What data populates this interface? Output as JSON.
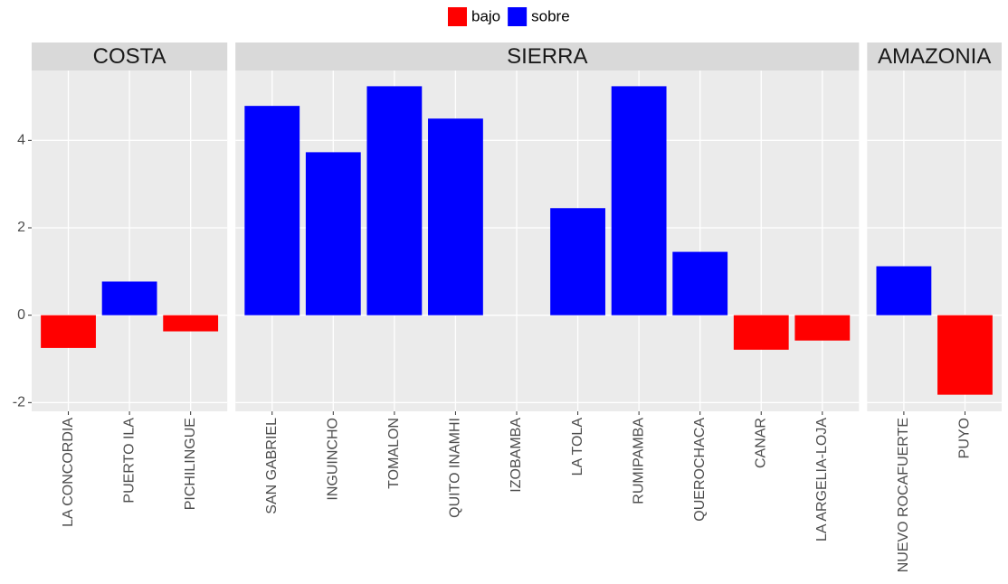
{
  "chart_data": [
    {
      "type": "bar",
      "title": "COSTA",
      "categories": [
        "LA CONCORDIA",
        "PUERTO ILA",
        "PICHILINGUE"
      ],
      "series": [
        {
          "name": "bajo",
          "color": "#ff0000",
          "values": [
            -0.75,
            null,
            -0.37
          ]
        },
        {
          "name": "sobre",
          "color": "#0000ff",
          "values": [
            null,
            0.77,
            null
          ]
        }
      ],
      "ylim": [
        -2.2,
        5.6
      ],
      "yticks": [
        -2,
        0,
        2,
        4
      ],
      "grid": true
    },
    {
      "type": "bar",
      "title": "SIERRA",
      "categories": [
        "SAN GABRIEL",
        "INGUINCHO",
        "TOMALON",
        "QUITO INAMHI",
        "IZOBAMBA",
        "LA TOLA",
        "RUMIPAMBA",
        "QUEROCHACA",
        "CANAR",
        "LA ARGELIA-LOJA"
      ],
      "series": [
        {
          "name": "bajo",
          "color": "#ff0000",
          "values": [
            null,
            null,
            null,
            null,
            null,
            null,
            null,
            null,
            -0.79,
            -0.58
          ]
        },
        {
          "name": "sobre",
          "color": "#0000ff",
          "values": [
            4.79,
            3.73,
            5.24,
            4.5,
            null,
            2.45,
            5.24,
            1.45,
            null,
            null
          ]
        }
      ],
      "ylim": [
        -2.2,
        5.6
      ],
      "yticks": [
        -2,
        0,
        2,
        4
      ],
      "grid": true
    },
    {
      "type": "bar",
      "title": "AMAZONIA",
      "categories": [
        "NUEVO ROCAFUERTE",
        "PUYO"
      ],
      "series": [
        {
          "name": "bajo",
          "color": "#ff0000",
          "values": [
            null,
            -1.82
          ]
        },
        {
          "name": "sobre",
          "color": "#0000ff",
          "values": [
            1.12,
            null
          ]
        }
      ],
      "ylim": [
        -2.2,
        5.6
      ],
      "yticks": [
        -2,
        0,
        2,
        4
      ],
      "grid": true
    }
  ]
}
